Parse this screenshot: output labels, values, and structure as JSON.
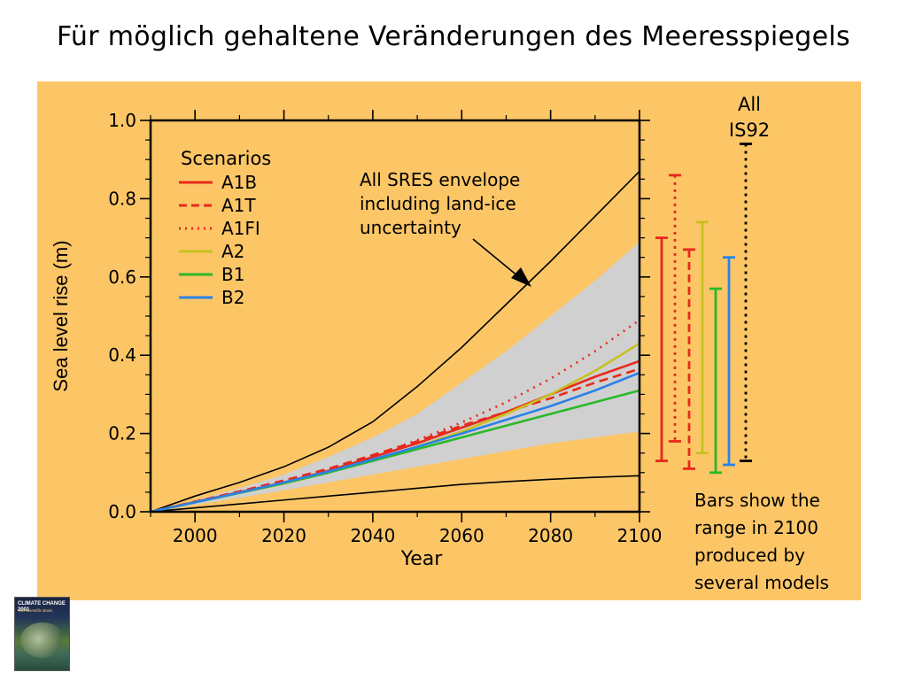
{
  "slide": {
    "title": "Für möglich gehaltene Veränderungen des Meeresspiegels"
  },
  "colors": {
    "panel_bg": "#fcc667",
    "envelope": "#d0d0d0",
    "A1B": "#e8291c",
    "A1T": "#e8291c",
    "A1FI": "#e8291c",
    "A2": "#c8c020",
    "B1": "#2ab82a",
    "B2": "#2a82e8",
    "IS92": "#000000"
  },
  "annotations": {
    "all_is92_line1": "All",
    "all_is92_line2": "IS92",
    "envelope_line1": "All SRES envelope",
    "envelope_line2": "including land-ice",
    "envelope_line3": "uncertainty",
    "bars_line1": "Bars show the",
    "bars_line2": "range in 2100",
    "bars_line3": "produced by",
    "bars_line4": "several models"
  },
  "thumbnail": {
    "title_line1": "CLIMATE CHANGE 2001",
    "title_line2": "The Scientific Basis"
  },
  "chart_data": {
    "type": "line",
    "xlabel": "Year",
    "ylabel": "Sea level rise (m)",
    "xlim": [
      1990,
      2100
    ],
    "ylim": [
      0.0,
      1.0
    ],
    "x_ticks": [
      2000,
      2020,
      2040,
      2060,
      2080,
      2100
    ],
    "x_tick_labels": [
      "2000",
      "2020",
      "2040",
      "2060",
      "2080",
      "2100"
    ],
    "y_ticks": [
      0.0,
      0.2,
      0.4,
      0.6,
      0.8,
      1.0
    ],
    "y_tick_labels": [
      "0.0",
      "0.2",
      "0.4",
      "0.6",
      "0.8",
      "1.0"
    ],
    "legend_title": "Scenarios",
    "legend_position": "top-left",
    "envelope_upper": {
      "x": [
        1990,
        2000,
        2010,
        2020,
        2030,
        2040,
        2050,
        2060,
        2070,
        2080,
        2090,
        2100
      ],
      "y": [
        0.0,
        0.04,
        0.075,
        0.115,
        0.165,
        0.23,
        0.32,
        0.42,
        0.53,
        0.64,
        0.755,
        0.87
      ]
    },
    "envelope_lower": {
      "x": [
        1990,
        2000,
        2010,
        2020,
        2030,
        2040,
        2050,
        2060,
        2070,
        2080,
        2090,
        2100
      ],
      "y": [
        0.0,
        0.01,
        0.02,
        0.03,
        0.04,
        0.05,
        0.06,
        0.07,
        0.077,
        0.083,
        0.088,
        0.092
      ]
    },
    "gray_band_upper": {
      "x": [
        1990,
        2000,
        2010,
        2020,
        2030,
        2040,
        2050,
        2060,
        2070,
        2080,
        2090,
        2100
      ],
      "y": [
        0.0,
        0.03,
        0.06,
        0.095,
        0.14,
        0.19,
        0.25,
        0.33,
        0.41,
        0.5,
        0.59,
        0.69
      ]
    },
    "gray_band_lower": {
      "x": [
        1990,
        2000,
        2010,
        2020,
        2030,
        2040,
        2050,
        2060,
        2070,
        2080,
        2090,
        2100
      ],
      "y": [
        0.0,
        0.018,
        0.036,
        0.055,
        0.075,
        0.095,
        0.115,
        0.135,
        0.155,
        0.175,
        0.19,
        0.205
      ]
    },
    "series": [
      {
        "name": "A1B",
        "style": "solid",
        "x": [
          1990,
          2000,
          2010,
          2020,
          2030,
          2040,
          2050,
          2060,
          2070,
          2080,
          2090,
          2100
        ],
        "y": [
          0.0,
          0.025,
          0.05,
          0.075,
          0.105,
          0.14,
          0.175,
          0.215,
          0.255,
          0.3,
          0.345,
          0.385
        ]
      },
      {
        "name": "A1T",
        "style": "dashed",
        "x": [
          1990,
          2000,
          2010,
          2020,
          2030,
          2040,
          2050,
          2060,
          2070,
          2080,
          2090,
          2100
        ],
        "y": [
          0.0,
          0.026,
          0.052,
          0.08,
          0.11,
          0.145,
          0.18,
          0.22,
          0.255,
          0.29,
          0.33,
          0.365
        ]
      },
      {
        "name": "A1FI",
        "style": "dotted",
        "x": [
          1990,
          2000,
          2010,
          2020,
          2030,
          2040,
          2050,
          2060,
          2070,
          2080,
          2090,
          2100
        ],
        "y": [
          0.0,
          0.025,
          0.05,
          0.077,
          0.108,
          0.143,
          0.183,
          0.228,
          0.28,
          0.34,
          0.41,
          0.49
        ]
      },
      {
        "name": "A2",
        "style": "solid",
        "x": [
          1990,
          2000,
          2010,
          2020,
          2030,
          2040,
          2050,
          2060,
          2070,
          2080,
          2090,
          2100
        ],
        "y": [
          0.0,
          0.024,
          0.048,
          0.072,
          0.1,
          0.132,
          0.167,
          0.205,
          0.25,
          0.3,
          0.36,
          0.43
        ]
      },
      {
        "name": "B1",
        "style": "solid",
        "x": [
          1990,
          2000,
          2010,
          2020,
          2030,
          2040,
          2050,
          2060,
          2070,
          2080,
          2090,
          2100
        ],
        "y": [
          0.0,
          0.024,
          0.048,
          0.073,
          0.1,
          0.13,
          0.16,
          0.19,
          0.22,
          0.25,
          0.28,
          0.31
        ]
      },
      {
        "name": "B2",
        "style": "solid",
        "x": [
          1990,
          2000,
          2010,
          2020,
          2030,
          2040,
          2050,
          2060,
          2070,
          2080,
          2090,
          2100
        ],
        "y": [
          0.0,
          0.024,
          0.049,
          0.075,
          0.103,
          0.134,
          0.166,
          0.2,
          0.235,
          0.27,
          0.31,
          0.355
        ]
      }
    ],
    "range_bars_2100": [
      {
        "name": "A1B",
        "style": "solid",
        "min": 0.13,
        "max": 0.7
      },
      {
        "name": "A1FI",
        "style": "dotted",
        "min": 0.18,
        "max": 0.86
      },
      {
        "name": "A1T",
        "style": "dashed",
        "min": 0.11,
        "max": 0.67
      },
      {
        "name": "A2",
        "style": "solid",
        "min": 0.15,
        "max": 0.74
      },
      {
        "name": "B1",
        "style": "solid",
        "min": 0.1,
        "max": 0.57
      },
      {
        "name": "B2",
        "style": "solid",
        "min": 0.12,
        "max": 0.65
      },
      {
        "name": "IS92",
        "style": "dotted",
        "min": 0.13,
        "max": 0.94
      }
    ]
  }
}
